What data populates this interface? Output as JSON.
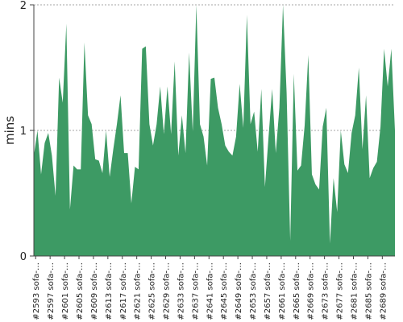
{
  "chart_data": {
    "type": "area",
    "title": "",
    "xlabel": "",
    "ylabel": "mins",
    "ylim": [
      0,
      2
    ],
    "yticks": [
      0,
      1,
      2
    ],
    "grid": "horizontal dashed",
    "legend": "none",
    "fill_color": "#3d9a64",
    "x_tick_labels": [
      "#2593 sofa-…",
      "#2597 sofa-…",
      "#2601 sofa-…",
      "#2605 sofa-…",
      "#2609 sofa-…",
      "#2613 sofa-…",
      "#2617 sofa-…",
      "#2621 sofa-…",
      "#2625 sofa-…",
      "#2629 sofa-…",
      "#2633 sofa-…",
      "#2637 sofa-…",
      "#2641 sofa-…",
      "#2645 sofa-…",
      "#2649 sofa-…",
      "#2653 sofa-…",
      "#2657 sofa-…",
      "#2661 sofa-…",
      "#2665 sofa-…",
      "#2669 sofa-…",
      "#2673 sofa-…",
      "#2677 sofa-…",
      "#2681 sofa-…",
      "#2685 sofa-…",
      "#2689 sofa-…"
    ],
    "values": [
      0.8,
      1.0,
      0.65,
      0.9,
      0.98,
      0.8,
      0.48,
      1.42,
      1.22,
      1.85,
      0.37,
      0.72,
      0.69,
      0.69,
      1.7,
      1.12,
      1.05,
      0.77,
      0.76,
      0.66,
      1.0,
      0.63,
      0.85,
      1.05,
      1.28,
      0.82,
      0.82,
      0.42,
      0.71,
      0.69,
      1.65,
      1.67,
      1.05,
      0.88,
      1.05,
      1.35,
      0.97,
      1.35,
      0.97,
      1.55,
      0.8,
      1.12,
      0.82,
      1.62,
      0.99,
      2.0,
      1.05,
      0.95,
      0.72,
      1.41,
      1.42,
      1.18,
      1.05,
      0.88,
      0.83,
      0.8,
      0.95,
      1.37,
      1.02,
      1.92,
      1.05,
      1.15,
      0.83,
      1.33,
      0.55,
      0.95,
      1.33,
      0.82,
      1.18,
      2.0,
      1.3,
      0.12,
      1.45,
      0.68,
      0.72,
      1.04,
      1.6,
      0.65,
      0.57,
      0.53,
      1.03,
      1.18,
      0.1,
      0.62,
      0.35,
      1.0,
      0.73,
      0.66,
      0.98,
      1.12,
      1.5,
      0.85,
      1.28,
      0.62,
      0.7,
      0.75,
      1.03,
      1.65,
      1.35,
      1.65,
      1.0
    ]
  }
}
